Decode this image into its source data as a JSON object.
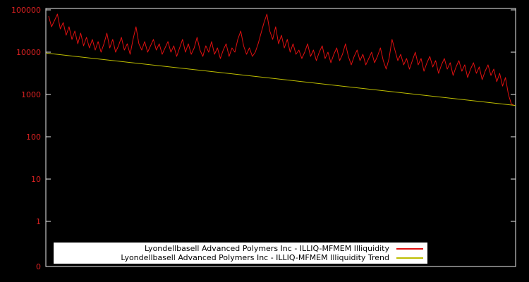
{
  "chart": {
    "background": "#000000",
    "border_color": "#ececec",
    "tick_label_color": "#dd2222",
    "legend_background": "#ffffff",
    "legend_text_color": "#000000"
  },
  "chart_data": {
    "type": "line",
    "title": "",
    "xlabel": "",
    "ylabel": "",
    "legend_position": "inside bottom center",
    "y_axis": {
      "scale": "log",
      "tick_labels": [
        "100000",
        "10000",
        "1000",
        "100",
        "10",
        "1",
        "0"
      ]
    },
    "x_axis": {
      "tick_labels": []
    },
    "series": [
      {
        "name": "Lyondellbasell Advanced Polymers Inc - ILLIQ-MFMEM Illiquidity",
        "color": "#e01010",
        "values": [
          70800,
          39800,
          56200,
          79400,
          35500,
          50100,
          25100,
          39800,
          20000,
          31600,
          15800,
          28200,
          14100,
          22400,
          12600,
          20000,
          11200,
          17800,
          10000,
          15800,
          28200,
          12600,
          20000,
          10000,
          14100,
          22400,
          11200,
          15800,
          8910,
          20000,
          39800,
          15800,
          11200,
          17800,
          10000,
          14100,
          20000,
          11200,
          15800,
          8910,
          12600,
          17800,
          10000,
          14100,
          7940,
          12600,
          20000,
          10000,
          15800,
          8910,
          12600,
          22400,
          11200,
          7940,
          14100,
          10000,
          17800,
          8910,
          12600,
          7080,
          11200,
          15800,
          7940,
          12600,
          10000,
          20000,
          31600,
          14100,
          8910,
          12600,
          7940,
          10000,
          15800,
          28200,
          50100,
          79400,
          31600,
          20000,
          39800,
          15800,
          25100,
          12600,
          20000,
          10000,
          15800,
          8910,
          11200,
          7080,
          10000,
          15800,
          7940,
          11200,
          6310,
          10000,
          14100,
          7080,
          10000,
          5620,
          8910,
          12600,
          6310,
          8910,
          15800,
          7940,
          5010,
          7940,
          11200,
          6310,
          8910,
          5010,
          7080,
          10000,
          5620,
          7940,
          12600,
          6310,
          3980,
          7080,
          20000,
          11200,
          6310,
          8910,
          5010,
          7080,
          3980,
          6310,
          10000,
          5010,
          7080,
          3550,
          5620,
          7940,
          4470,
          6310,
          3160,
          5010,
          7080,
          3980,
          5620,
          2820,
          4470,
          6310,
          3550,
          5010,
          2510,
          3980,
          5620,
          3160,
          4470,
          2240,
          3550,
          5010,
          2820,
          3980,
          2000,
          3160,
          1580,
          2510,
          1000,
          600,
          550
        ]
      },
      {
        "name": "Lyondellbasell Advanced Polymers Inc - ILLIQ-MFMEM Illiquidity Trend",
        "color": "#bdbd00",
        "style": "trend-line",
        "values": [
          9500,
          550
        ]
      }
    ]
  }
}
